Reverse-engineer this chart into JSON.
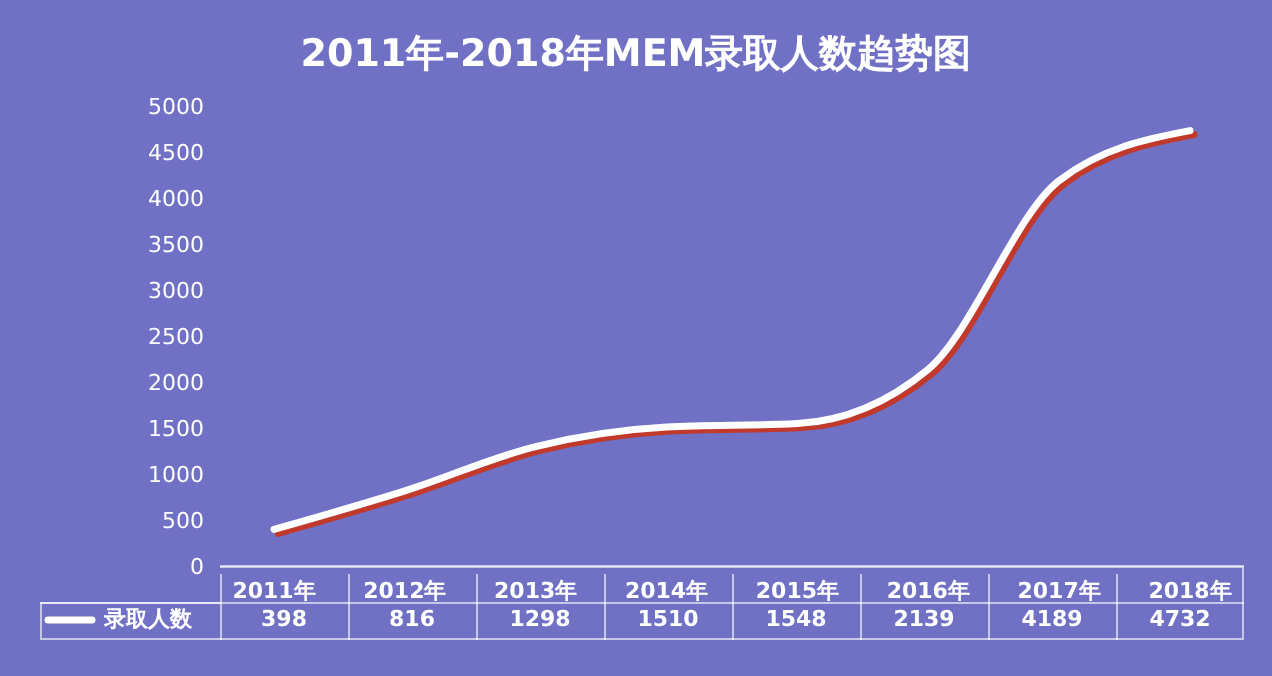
{
  "chart_data": {
    "type": "line",
    "title": "2011年-2018年MEM录取人数趋势图",
    "categories": [
      "2011年",
      "2012年",
      "2013年",
      "2014年",
      "2015年",
      "2016年",
      "2017年",
      "2018年"
    ],
    "series": [
      {
        "name": "录取人数",
        "color": "#ffffff",
        "values": [
          398,
          816,
          1298,
          1510,
          1548,
          2139,
          4189,
          4732
        ]
      }
    ],
    "ylim": [
      0,
      5000
    ],
    "yticks": [
      0,
      500,
      1000,
      1500,
      2000,
      2500,
      3000,
      3500,
      4000,
      4500,
      5000
    ],
    "legend": "bottom",
    "data_labels": true,
    "marker": "none",
    "line_style": "solid"
  }
}
